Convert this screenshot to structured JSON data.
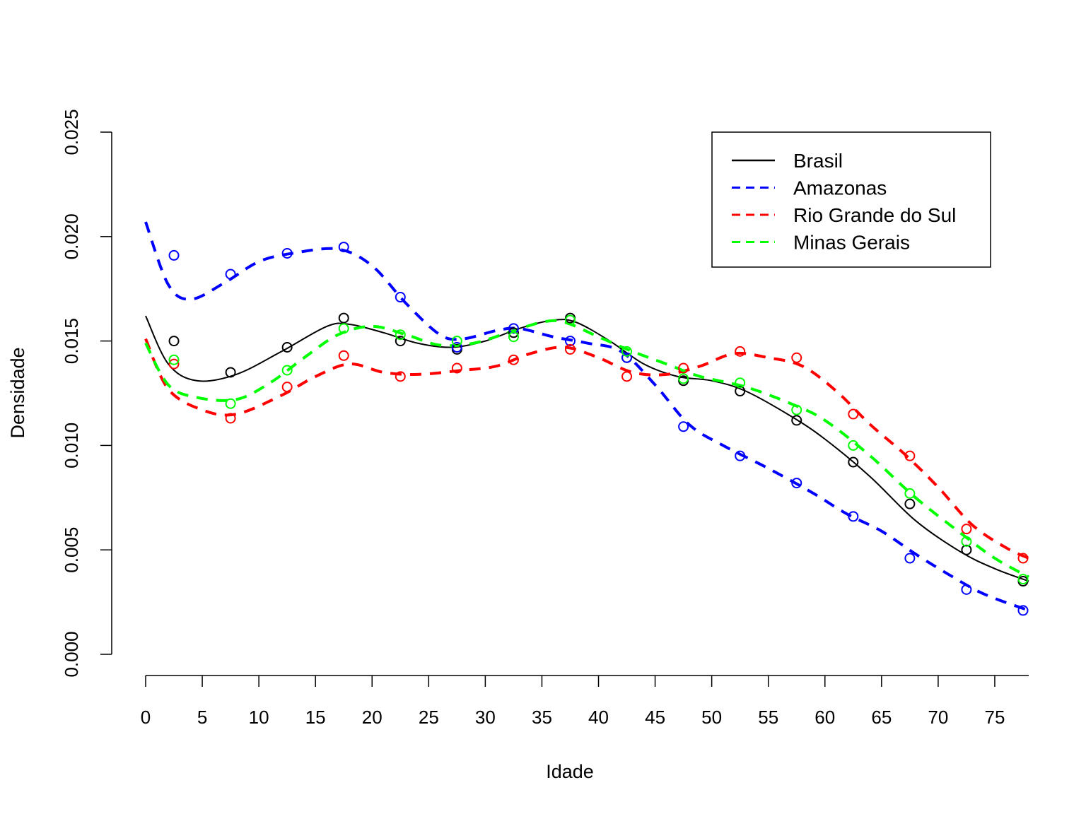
{
  "chart_data": {
    "type": "line",
    "xlabel": "Idade",
    "ylabel": "Densidade",
    "xlim": [
      0,
      78
    ],
    "ylim": [
      0,
      0.025
    ],
    "x_ticks": [
      "0",
      "5",
      "10",
      "15",
      "20",
      "25",
      "30",
      "35",
      "40",
      "45",
      "50",
      "55",
      "60",
      "65",
      "70",
      "75"
    ],
    "y_ticks": [
      "0.000",
      "0.005",
      "0.010",
      "0.015",
      "0.020",
      "0.025"
    ],
    "grid": false,
    "legend_position": "top-right",
    "points_x": [
      2.5,
      7.5,
      12.5,
      17.5,
      22.5,
      27.5,
      32.5,
      37.5,
      42.5,
      47.5,
      52.5,
      57.5,
      62.5,
      67.5,
      72.5,
      77.5
    ],
    "series": [
      {
        "name": "Brasil",
        "color": "#000000",
        "dash": "solid",
        "points": [
          0.015,
          0.0135,
          0.0147,
          0.0161,
          0.015,
          0.0146,
          0.0154,
          0.0161,
          0.0142,
          0.0131,
          0.0126,
          0.0112,
          0.0092,
          0.0072,
          0.005,
          0.0035
        ],
        "curve": [
          [
            0,
            0.0162
          ],
          [
            2,
            0.0139
          ],
          [
            4.5,
            0.0131
          ],
          [
            8,
            0.0134
          ],
          [
            12,
            0.0145
          ],
          [
            16,
            0.0157
          ],
          [
            18,
            0.0158
          ],
          [
            21,
            0.0154
          ],
          [
            24,
            0.0149
          ],
          [
            27,
            0.0147
          ],
          [
            30,
            0.015
          ],
          [
            33,
            0.0156
          ],
          [
            36,
            0.016
          ],
          [
            38,
            0.0159
          ],
          [
            41,
            0.015
          ],
          [
            44,
            0.0139
          ],
          [
            47,
            0.0133
          ],
          [
            50,
            0.0131
          ],
          [
            53,
            0.0126
          ],
          [
            57,
            0.0114
          ],
          [
            60,
            0.0103
          ],
          [
            64,
            0.0085
          ],
          [
            68,
            0.0064
          ],
          [
            72,
            0.0049
          ],
          [
            75,
            0.0041
          ],
          [
            78,
            0.0035
          ]
        ]
      },
      {
        "name": "Amazonas",
        "color": "#0000ff",
        "dash": "dashed",
        "points": [
          0.0191,
          0.0182,
          0.0192,
          0.0195,
          0.0171,
          0.0147,
          0.0156,
          0.015,
          0.0142,
          0.0109,
          0.0095,
          0.0082,
          0.0066,
          0.0046,
          0.0031,
          0.0021
        ],
        "curve": [
          [
            0,
            0.0207
          ],
          [
            2,
            0.0177
          ],
          [
            4,
            0.017
          ],
          [
            7,
            0.0178
          ],
          [
            10,
            0.0188
          ],
          [
            13,
            0.0192
          ],
          [
            17,
            0.0194
          ],
          [
            20,
            0.0186
          ],
          [
            23,
            0.0168
          ],
          [
            26,
            0.0153
          ],
          [
            28,
            0.0151
          ],
          [
            31,
            0.0155
          ],
          [
            33,
            0.0156
          ],
          [
            36,
            0.0152
          ],
          [
            39,
            0.0149
          ],
          [
            42,
            0.0145
          ],
          [
            45,
            0.0129
          ],
          [
            48,
            0.011
          ],
          [
            51,
            0.01
          ],
          [
            55,
            0.0089
          ],
          [
            59,
            0.0077
          ],
          [
            62,
            0.0067
          ],
          [
            65,
            0.0059
          ],
          [
            68,
            0.0048
          ],
          [
            71,
            0.0038
          ],
          [
            74,
            0.0029
          ],
          [
            78,
            0.0021
          ]
        ]
      },
      {
        "name": "Rio Grande do Sul",
        "color": "#ff0000",
        "dash": "dashed",
        "points": [
          0.0139,
          0.0113,
          0.0128,
          0.0143,
          0.0133,
          0.0137,
          0.0141,
          0.0146,
          0.0133,
          0.0137,
          0.0145,
          0.0142,
          0.0115,
          0.0095,
          0.006,
          0.0046
        ],
        "curve": [
          [
            0,
            0.0151
          ],
          [
            2,
            0.0127
          ],
          [
            5,
            0.0117
          ],
          [
            8,
            0.0115
          ],
          [
            12,
            0.0124
          ],
          [
            15,
            0.0133
          ],
          [
            18,
            0.0139
          ],
          [
            21,
            0.0135
          ],
          [
            24,
            0.0134
          ],
          [
            28,
            0.0136
          ],
          [
            31,
            0.0138
          ],
          [
            34,
            0.0144
          ],
          [
            37,
            0.0147
          ],
          [
            40,
            0.0142
          ],
          [
            43,
            0.0135
          ],
          [
            46,
            0.0134
          ],
          [
            49,
            0.0138
          ],
          [
            52,
            0.0144
          ],
          [
            55,
            0.0142
          ],
          [
            58,
            0.0138
          ],
          [
            61,
            0.0126
          ],
          [
            64,
            0.011
          ],
          [
            67,
            0.0096
          ],
          [
            70,
            0.008
          ],
          [
            73,
            0.0062
          ],
          [
            76,
            0.0051
          ],
          [
            78,
            0.0046
          ]
        ]
      },
      {
        "name": "Minas Gerais",
        "color": "#00ff00",
        "dash": "dashed",
        "points": [
          0.0141,
          0.012,
          0.0136,
          0.0156,
          0.0153,
          0.015,
          0.0152,
          0.016,
          0.0145,
          0.0132,
          0.013,
          0.0117,
          0.01,
          0.0077,
          0.0054,
          0.0036
        ],
        "curve": [
          [
            0,
            0.0149
          ],
          [
            2,
            0.0129
          ],
          [
            4.5,
            0.0123
          ],
          [
            8,
            0.0122
          ],
          [
            11,
            0.013
          ],
          [
            14,
            0.0142
          ],
          [
            17,
            0.0153
          ],
          [
            20,
            0.0157
          ],
          [
            23,
            0.0153
          ],
          [
            26,
            0.0148
          ],
          [
            29,
            0.0149
          ],
          [
            32,
            0.0154
          ],
          [
            35,
            0.0159
          ],
          [
            37,
            0.0159
          ],
          [
            40,
            0.0152
          ],
          [
            43,
            0.0145
          ],
          [
            46,
            0.0139
          ],
          [
            49,
            0.0133
          ],
          [
            53,
            0.0128
          ],
          [
            57,
            0.012
          ],
          [
            60,
            0.0112
          ],
          [
            64,
            0.0095
          ],
          [
            68,
            0.0075
          ],
          [
            72,
            0.0058
          ],
          [
            75,
            0.0046
          ],
          [
            78,
            0.0037
          ]
        ]
      }
    ]
  }
}
